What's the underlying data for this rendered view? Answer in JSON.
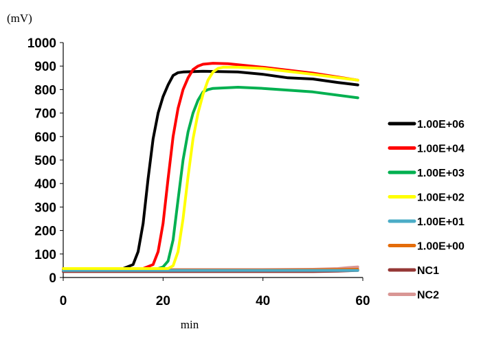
{
  "chart_data": {
    "type": "line",
    "ylabel": "(mV)",
    "xlabel": "min",
    "xlim": [
      0,
      60
    ],
    "ylim": [
      0,
      1000
    ],
    "xticks": [
      "0",
      "20",
      "40",
      "60"
    ],
    "yticks": [
      "0",
      "100",
      "200",
      "300",
      "400",
      "500",
      "600",
      "700",
      "800",
      "900",
      "1000"
    ],
    "grid": false,
    "legend_position": "right",
    "series": [
      {
        "name": "1.00E+06",
        "color": "#000000",
        "x": [
          0,
          12,
          14,
          15,
          16,
          17,
          18,
          19,
          20,
          21,
          22,
          23,
          24,
          28,
          35,
          40,
          45,
          50,
          55,
          59
        ],
        "y": [
          38,
          38,
          55,
          110,
          230,
          420,
          590,
          700,
          770,
          820,
          860,
          872,
          875,
          878,
          875,
          865,
          850,
          845,
          830,
          820
        ]
      },
      {
        "name": "1.00E+04",
        "color": "#ff0000",
        "x": [
          0,
          16,
          18,
          19,
          20,
          21,
          22,
          23,
          24,
          25,
          26,
          27,
          28,
          30,
          33,
          40,
          50,
          59
        ],
        "y": [
          38,
          38,
          55,
          110,
          230,
          420,
          600,
          720,
          800,
          850,
          885,
          900,
          908,
          912,
          910,
          895,
          870,
          840
        ]
      },
      {
        "name": "1.00E+03",
        "color": "#00b050",
        "x": [
          0,
          19,
          20,
          21,
          22,
          23,
          24,
          25,
          26,
          27,
          28,
          29,
          30,
          35,
          40,
          50,
          59
        ],
        "y": [
          38,
          38,
          45,
          70,
          160,
          330,
          500,
          620,
          700,
          755,
          790,
          800,
          805,
          810,
          805,
          790,
          765
        ]
      },
      {
        "name": "1.00E+02",
        "color": "#ffff00",
        "x": [
          0,
          21,
          22,
          23,
          24,
          25,
          26,
          27,
          28,
          29,
          30,
          31,
          32,
          35,
          40,
          50,
          59
        ],
        "y": [
          38,
          38,
          50,
          110,
          250,
          430,
          590,
          700,
          780,
          840,
          875,
          890,
          895,
          895,
          890,
          865,
          840
        ]
      },
      {
        "name": "1.00E+01",
        "color": "#4bacc6",
        "x": [
          0,
          10,
          20,
          30,
          40,
          50,
          59
        ],
        "y": [
          30,
          30,
          30,
          30,
          30,
          30,
          30
        ]
      },
      {
        "name": "1.00E+00",
        "color": "#e46c0a",
        "x": [
          0,
          10,
          20,
          30,
          40,
          50,
          59
        ],
        "y": [
          32,
          32,
          32,
          32,
          32,
          33,
          35
        ]
      },
      {
        "name": "NC1",
        "color": "#953735",
        "x": [
          0,
          10,
          20,
          30,
          40,
          50,
          55,
          59
        ],
        "y": [
          25,
          25,
          25,
          25,
          25,
          25,
          27,
          30
        ]
      },
      {
        "name": "NC2",
        "color": "#d99694",
        "x": [
          0,
          10,
          20,
          30,
          40,
          50,
          55,
          57,
          59
        ],
        "y": [
          34,
          34,
          34,
          34,
          34,
          35,
          38,
          42,
          45
        ]
      }
    ]
  }
}
